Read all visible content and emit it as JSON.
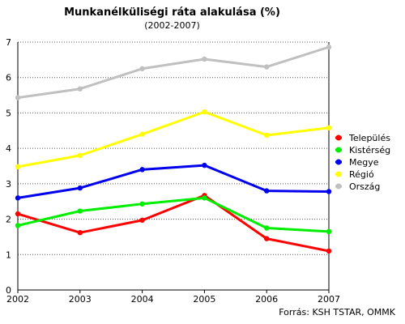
{
  "chart_data": {
    "type": "line",
    "title": "Munkanélküliségi ráta alakulása (%)",
    "subtitle": "(2002-2007)",
    "source": "Forrás: KSH TSTAR, OMMK",
    "x": [
      "2002",
      "2003",
      "2004",
      "2005",
      "2006",
      "2007"
    ],
    "y_ticks": [
      "0",
      "1",
      "2",
      "3",
      "4",
      "5",
      "6",
      "7"
    ],
    "ylim": [
      0,
      7
    ],
    "grid": "horizontal",
    "legend_position": "right",
    "series": [
      {
        "name": "Település",
        "color": "#ff0000",
        "values": [
          2.15,
          1.62,
          1.97,
          2.67,
          1.45,
          1.1
        ]
      },
      {
        "name": "Kistérség",
        "color": "#00ee00",
        "values": [
          1.82,
          2.23,
          2.43,
          2.6,
          1.75,
          1.65
        ]
      },
      {
        "name": "Megye",
        "color": "#0000ee",
        "values": [
          2.6,
          2.88,
          3.4,
          3.52,
          2.8,
          2.78
        ]
      },
      {
        "name": "Régió",
        "color": "#ffff00",
        "values": [
          3.48,
          3.8,
          4.4,
          5.03,
          4.37,
          4.58
        ]
      },
      {
        "name": "Ország",
        "color": "#c0c0c0",
        "values": [
          5.43,
          5.68,
          6.25,
          6.52,
          6.3,
          6.86
        ]
      }
    ]
  }
}
